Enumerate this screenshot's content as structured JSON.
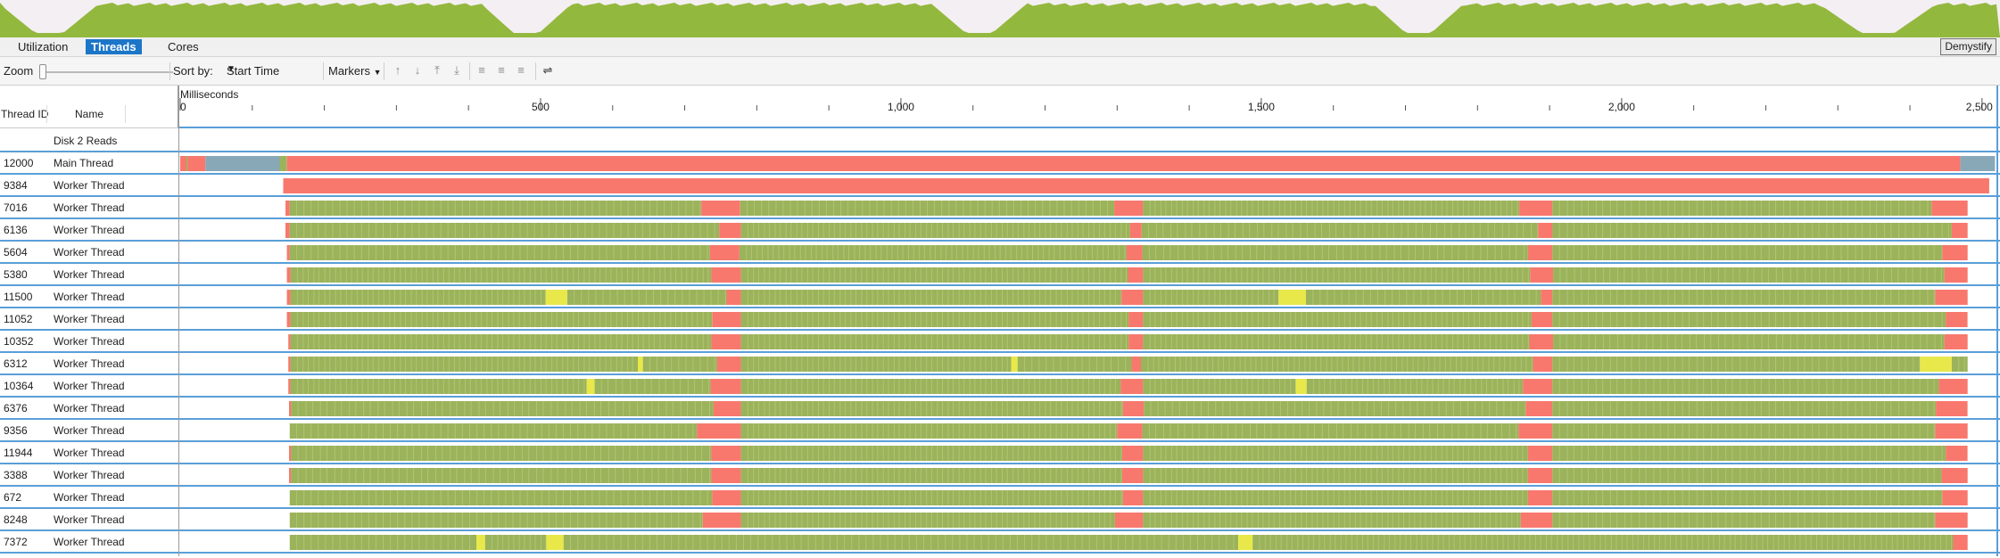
{
  "overview": {
    "fill_color": "#93b83e",
    "background": "#f4eff2",
    "border_color": "#e05050"
  },
  "tabs": [
    {
      "label": "Utilization",
      "active": false
    },
    {
      "label": "Threads",
      "active": true
    },
    {
      "label": "Cores",
      "active": false
    }
  ],
  "demystify_label": "Demystify",
  "toolbar": {
    "zoom_label": "Zoom",
    "zoom_level": 0,
    "sort_by_label": "Sort by:",
    "sort_value": "Start Time",
    "markers_label": "Markers",
    "icons": [
      "move-up-icon",
      "move-down-icon",
      "move-top-icon",
      "move-bottom-icon",
      "expand-all-icon",
      "collapse-all-icon",
      "remove-icon",
      "sort-icon"
    ]
  },
  "columns": {
    "thread_id": "Thread ID",
    "name": "Name"
  },
  "axis": {
    "label": "Milliseconds",
    "ticks": [
      "0",
      "500",
      "1,000",
      "1,500",
      "2,000",
      "2,500"
    ],
    "range": [
      0,
      2520
    ]
  },
  "colors": {
    "execution": "#9bb35a",
    "sync": "#f8786e",
    "io": "#e8e84a",
    "sleep": "#88a8b8",
    "separator": "#5a9fd8"
  },
  "threads": [
    {
      "id": "",
      "name": "Disk 2 Reads",
      "segments": []
    },
    {
      "id": "12000",
      "name": "Main Thread",
      "segments": [
        [
          "sync",
          0,
          8
        ],
        [
          "exec",
          8,
          10
        ],
        [
          "sync",
          10,
          35
        ],
        [
          "sleep",
          35,
          138
        ],
        [
          "exec",
          138,
          148
        ],
        [
          "sync",
          148,
          2470
        ],
        [
          "sleep",
          2470,
          2518
        ]
      ]
    },
    {
      "id": "9384",
      "name": "Worker Thread",
      "segments": [
        [
          "sync",
          143,
          2510
        ]
      ]
    },
    {
      "id": "7016",
      "name": "Worker Thread",
      "segments": [
        [
          "sync",
          146,
          152
        ],
        [
          "exec",
          152,
          723
        ],
        [
          "sync",
          723,
          777
        ],
        [
          "exec",
          777,
          1296
        ],
        [
          "sync",
          1296,
          1336
        ],
        [
          "exec",
          1336,
          1858
        ],
        [
          "sync",
          1858,
          1904
        ],
        [
          "exec",
          1904,
          2430
        ],
        [
          "sync",
          2430,
          2480
        ]
      ]
    },
    {
      "id": "6136",
      "name": "Worker Thread",
      "segments": [
        [
          "sync",
          146,
          152
        ],
        [
          "exec",
          152,
          748
        ],
        [
          "sync",
          748,
          778
        ],
        [
          "exec",
          778,
          1318
        ],
        [
          "sync",
          1318,
          1334
        ],
        [
          "exec",
          1334,
          1884
        ],
        [
          "sync",
          1884,
          1904
        ],
        [
          "exec",
          1904,
          2458
        ],
        [
          "sync",
          2458,
          2480
        ]
      ]
    },
    {
      "id": "5604",
      "name": "Worker Thread",
      "segments": [
        [
          "sync",
          148,
          152
        ],
        [
          "exec",
          152,
          735
        ],
        [
          "sync",
          735,
          776
        ],
        [
          "exec",
          776,
          1313
        ],
        [
          "sync",
          1313,
          1335
        ],
        [
          "exec",
          1335,
          1870
        ],
        [
          "sync",
          1870,
          1904
        ],
        [
          "exec",
          1904,
          2445
        ],
        [
          "sync",
          2445,
          2480
        ]
      ]
    },
    {
      "id": "5380",
      "name": "Worker Thread",
      "segments": [
        [
          "sync",
          148,
          153
        ],
        [
          "exec",
          153,
          737
        ],
        [
          "sync",
          737,
          778
        ],
        [
          "exec",
          778,
          1315
        ],
        [
          "sync",
          1315,
          1336
        ],
        [
          "exec",
          1336,
          1873
        ],
        [
          "sync",
          1873,
          1905
        ],
        [
          "exec",
          1905,
          2448
        ],
        [
          "sync",
          2448,
          2480
        ]
      ]
    },
    {
      "id": "11500",
      "name": "Worker Thread",
      "segments": [
        [
          "sync",
          148,
          153
        ],
        [
          "exec",
          153,
          507
        ],
        [
          "io",
          507,
          537
        ],
        [
          "exec",
          537,
          758
        ],
        [
          "sync",
          758,
          778
        ],
        [
          "exec",
          778,
          1306
        ],
        [
          "sync",
          1306,
          1336
        ],
        [
          "exec",
          1336,
          1524
        ],
        [
          "io",
          1524,
          1562
        ],
        [
          "exec",
          1562,
          1888
        ],
        [
          "sync",
          1888,
          1904
        ],
        [
          "exec",
          1904,
          2435
        ],
        [
          "sync",
          2435,
          2480
        ]
      ]
    },
    {
      "id": "11052",
      "name": "Worker Thread",
      "segments": [
        [
          "sync",
          148,
          153
        ],
        [
          "exec",
          153,
          738
        ],
        [
          "sync",
          738,
          778
        ],
        [
          "exec",
          778,
          1316
        ],
        [
          "sync",
          1316,
          1336
        ],
        [
          "exec",
          1336,
          1875
        ],
        [
          "sync",
          1875,
          1904
        ],
        [
          "exec",
          1904,
          2450
        ],
        [
          "sync",
          2450,
          2480
        ]
      ]
    },
    {
      "id": "10352",
      "name": "Worker Thread",
      "segments": [
        [
          "sync",
          150,
          153
        ],
        [
          "exec",
          153,
          737
        ],
        [
          "sync",
          737,
          778
        ],
        [
          "exec",
          778,
          1316
        ],
        [
          "sync",
          1316,
          1336
        ],
        [
          "exec",
          1336,
          1872
        ],
        [
          "sync",
          1872,
          1905
        ],
        [
          "exec",
          1905,
          2448
        ],
        [
          "sync",
          2448,
          2480
        ]
      ]
    },
    {
      "id": "6312",
      "name": "Worker Thread",
      "segments": [
        [
          "sync",
          150,
          153
        ],
        [
          "exec",
          153,
          635
        ],
        [
          "io",
          635,
          642
        ],
        [
          "exec",
          642,
          745
        ],
        [
          "sync",
          745,
          778
        ],
        [
          "exec",
          778,
          1153
        ],
        [
          "io",
          1153,
          1162
        ],
        [
          "exec",
          1162,
          1320
        ],
        [
          "sync",
          1320,
          1333
        ],
        [
          "exec",
          1333,
          1877
        ],
        [
          "sync",
          1877,
          1904
        ],
        [
          "exec",
          1904,
          2414
        ],
        [
          "io",
          2414,
          2458
        ],
        [
          "exec",
          2458,
          2480
        ]
      ]
    },
    {
      "id": "10364",
      "name": "Worker Thread",
      "segments": [
        [
          "sync",
          150,
          153
        ],
        [
          "exec",
          153,
          564
        ],
        [
          "io",
          564,
          575
        ],
        [
          "exec",
          575,
          736
        ],
        [
          "sync",
          736,
          778
        ],
        [
          "exec",
          778,
          1305
        ],
        [
          "sync",
          1305,
          1336
        ],
        [
          "exec",
          1336,
          1548
        ],
        [
          "io",
          1548,
          1563
        ],
        [
          "exec",
          1563,
          1863
        ],
        [
          "sync",
          1863,
          1904
        ],
        [
          "exec",
          1904,
          2440
        ],
        [
          "sync",
          2440,
          2480
        ]
      ]
    },
    {
      "id": "6376",
      "name": "Worker Thread",
      "segments": [
        [
          "sync",
          151,
          154
        ],
        [
          "exec",
          154,
          740
        ],
        [
          "sync",
          740,
          778
        ],
        [
          "exec",
          778,
          1308
        ],
        [
          "sync",
          1308,
          1337
        ],
        [
          "exec",
          1337,
          1867
        ],
        [
          "sync",
          1867,
          1904
        ],
        [
          "exec",
          1904,
          2436
        ],
        [
          "sync",
          2436,
          2480
        ]
      ]
    },
    {
      "id": "9356",
      "name": "Worker Thread",
      "segments": [
        [
          "exec",
          152,
          717
        ],
        [
          "sync",
          717,
          778
        ],
        [
          "exec",
          778,
          1300
        ],
        [
          "sync",
          1300,
          1335
        ],
        [
          "exec",
          1335,
          1857
        ],
        [
          "sync",
          1857,
          1904
        ],
        [
          "exec",
          1904,
          2435
        ],
        [
          "sync",
          2435,
          2480
        ]
      ]
    },
    {
      "id": "11944",
      "name": "Worker Thread",
      "segments": [
        [
          "sync",
          151,
          154
        ],
        [
          "exec",
          154,
          737
        ],
        [
          "sync",
          737,
          778
        ],
        [
          "exec",
          778,
          1307
        ],
        [
          "sync",
          1307,
          1336
        ],
        [
          "exec",
          1336,
          1870
        ],
        [
          "sync",
          1870,
          1904
        ],
        [
          "exec",
          1904,
          2450
        ],
        [
          "sync",
          2450,
          2480
        ]
      ]
    },
    {
      "id": "3388",
      "name": "Worker Thread",
      "segments": [
        [
          "sync",
          151,
          154
        ],
        [
          "exec",
          154,
          737
        ],
        [
          "sync",
          737,
          778
        ],
        [
          "exec",
          778,
          1307
        ],
        [
          "sync",
          1307,
          1336
        ],
        [
          "exec",
          1336,
          1870
        ],
        [
          "sync",
          1870,
          1904
        ],
        [
          "exec",
          1904,
          2444
        ],
        [
          "sync",
          2444,
          2480
        ]
      ]
    },
    {
      "id": "672",
      "name": "Worker Thread",
      "segments": [
        [
          "exec",
          152,
          738
        ],
        [
          "sync",
          738,
          778
        ],
        [
          "exec",
          778,
          1308
        ],
        [
          "sync",
          1308,
          1336
        ],
        [
          "exec",
          1336,
          1870
        ],
        [
          "sync",
          1870,
          1904
        ],
        [
          "exec",
          1904,
          2445
        ],
        [
          "sync",
          2445,
          2480
        ]
      ]
    },
    {
      "id": "8248",
      "name": "Worker Thread",
      "segments": [
        [
          "exec",
          152,
          725
        ],
        [
          "sync",
          725,
          778
        ],
        [
          "exec",
          778,
          1297
        ],
        [
          "sync",
          1297,
          1336
        ],
        [
          "exec",
          1336,
          1860
        ],
        [
          "sync",
          1860,
          1904
        ],
        [
          "exec",
          1904,
          2435
        ],
        [
          "sync",
          2435,
          2480
        ]
      ]
    },
    {
      "id": "7372",
      "name": "Worker Thread",
      "segments": [
        [
          "exec",
          152,
          411
        ],
        [
          "io",
          411,
          423
        ],
        [
          "exec",
          423,
          508
        ],
        [
          "io",
          508,
          532
        ],
        [
          "exec",
          532,
          1468
        ],
        [
          "io",
          1468,
          1488
        ],
        [
          "exec",
          1488,
          2460
        ],
        [
          "sync",
          2460,
          2480
        ]
      ]
    }
  ]
}
